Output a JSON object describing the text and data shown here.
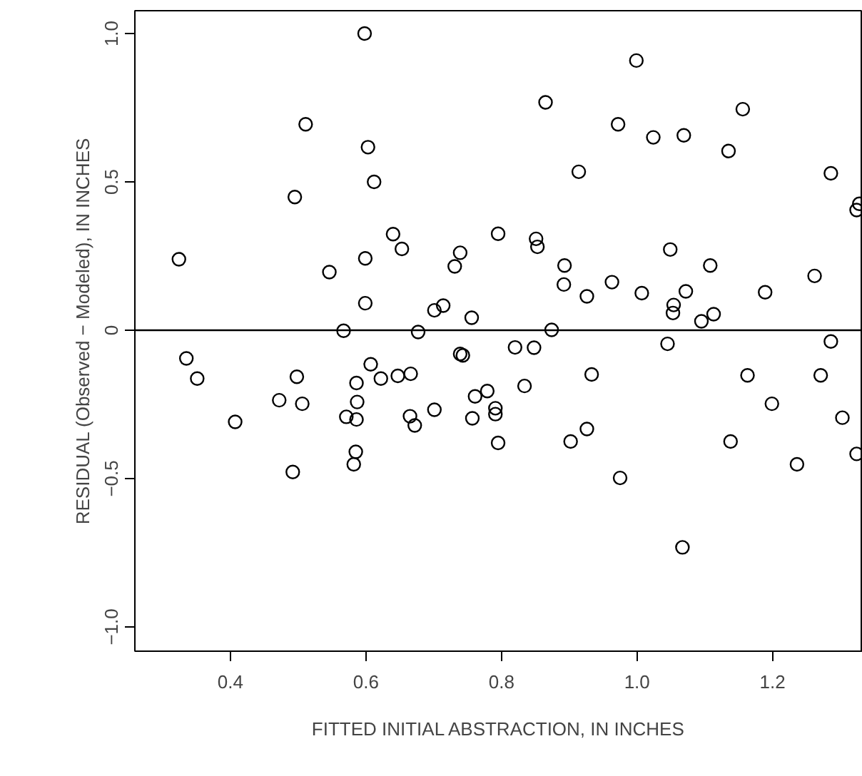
{
  "chart_data": {
    "type": "scatter",
    "xlabel": "FITTED INITIAL ABSTRACTION, IN INCHES",
    "ylabel": "RESIDUAL (Observed − Modeled), IN INCHES",
    "xlim": [
      0.259,
      1.333
    ],
    "ylim": [
      -1.082,
      1.077
    ],
    "xticks": [
      0.4,
      0.6,
      0.8,
      {
        "value": 1,
        "label": "1.0"
      },
      1.2
    ],
    "yticks": [
      {
        "value": -1.0,
        "label": "−1.0"
      },
      {
        "value": -0.5,
        "label": "−0.5"
      },
      0,
      0.5,
      {
        "value": 1,
        "label": "1.0"
      }
    ],
    "grid": false,
    "marker": "circle",
    "ref_lines": [
      {
        "axis": "y",
        "value": 0,
        "color": "#000000"
      }
    ],
    "series": [
      {
        "color": "#000000",
        "x": [
          0.598,
          0.511,
          0.603,
          0.612,
          0.495,
          0.64,
          0.653,
          0.324,
          0.599,
          0.546,
          0.739,
          0.731,
          0.795,
          0.599,
          0.701,
          0.714,
          0.756,
          0.567,
          0.677,
          0.999,
          0.865,
          1.156,
          0.972,
          1.024,
          1.069,
          1.135,
          0.914,
          1.286,
          1.328,
          1.324,
          0.851,
          0.853,
          1.049,
          0.893,
          1.108,
          1.262,
          0.892,
          0.963,
          0.926,
          1.007,
          1.072,
          1.189,
          1.054,
          1.053,
          1.113,
          1.095,
          0.874,
          0.335,
          0.351,
          0.407,
          0.472,
          0.498,
          0.506,
          0.492,
          0.607,
          0.586,
          0.622,
          0.647,
          0.666,
          0.587,
          0.571,
          0.586,
          0.665,
          0.672,
          0.701,
          0.585,
          0.582,
          0.739,
          0.743,
          0.761,
          0.779,
          0.757,
          0.791,
          0.791,
          0.795,
          0.82,
          0.848,
          0.834,
          0.933,
          0.902,
          0.926,
          0.975,
          1.045,
          1.067,
          1.163,
          1.138,
          1.199,
          1.236,
          1.271,
          1.286,
          1.303,
          1.324
        ],
        "values": [
          1.0,
          0.694,
          0.617,
          0.5,
          0.449,
          0.324,
          0.274,
          0.239,
          0.242,
          0.196,
          0.261,
          0.215,
          0.325,
          0.091,
          0.067,
          0.083,
          0.042,
          -0.002,
          -0.006,
          0.909,
          0.768,
          0.745,
          0.694,
          0.65,
          0.657,
          0.604,
          0.534,
          0.529,
          0.426,
          0.405,
          0.308,
          0.281,
          0.272,
          0.218,
          0.218,
          0.183,
          0.154,
          0.162,
          0.114,
          0.125,
          0.131,
          0.128,
          0.085,
          0.058,
          0.054,
          0.03,
          0.001,
          -0.095,
          -0.163,
          -0.309,
          -0.236,
          -0.157,
          -0.248,
          -0.478,
          -0.115,
          -0.178,
          -0.163,
          -0.154,
          -0.147,
          -0.242,
          -0.292,
          -0.301,
          -0.29,
          -0.321,
          -0.268,
          -0.41,
          -0.452,
          -0.08,
          -0.085,
          -0.223,
          -0.205,
          -0.297,
          -0.263,
          -0.283,
          -0.38,
          -0.058,
          -0.059,
          -0.188,
          -0.149,
          -0.375,
          -0.333,
          -0.498,
          -0.046,
          -0.732,
          -0.152,
          -0.375,
          -0.248,
          -0.452,
          -0.152,
          -0.038,
          -0.295,
          -0.417
        ]
      }
    ]
  }
}
